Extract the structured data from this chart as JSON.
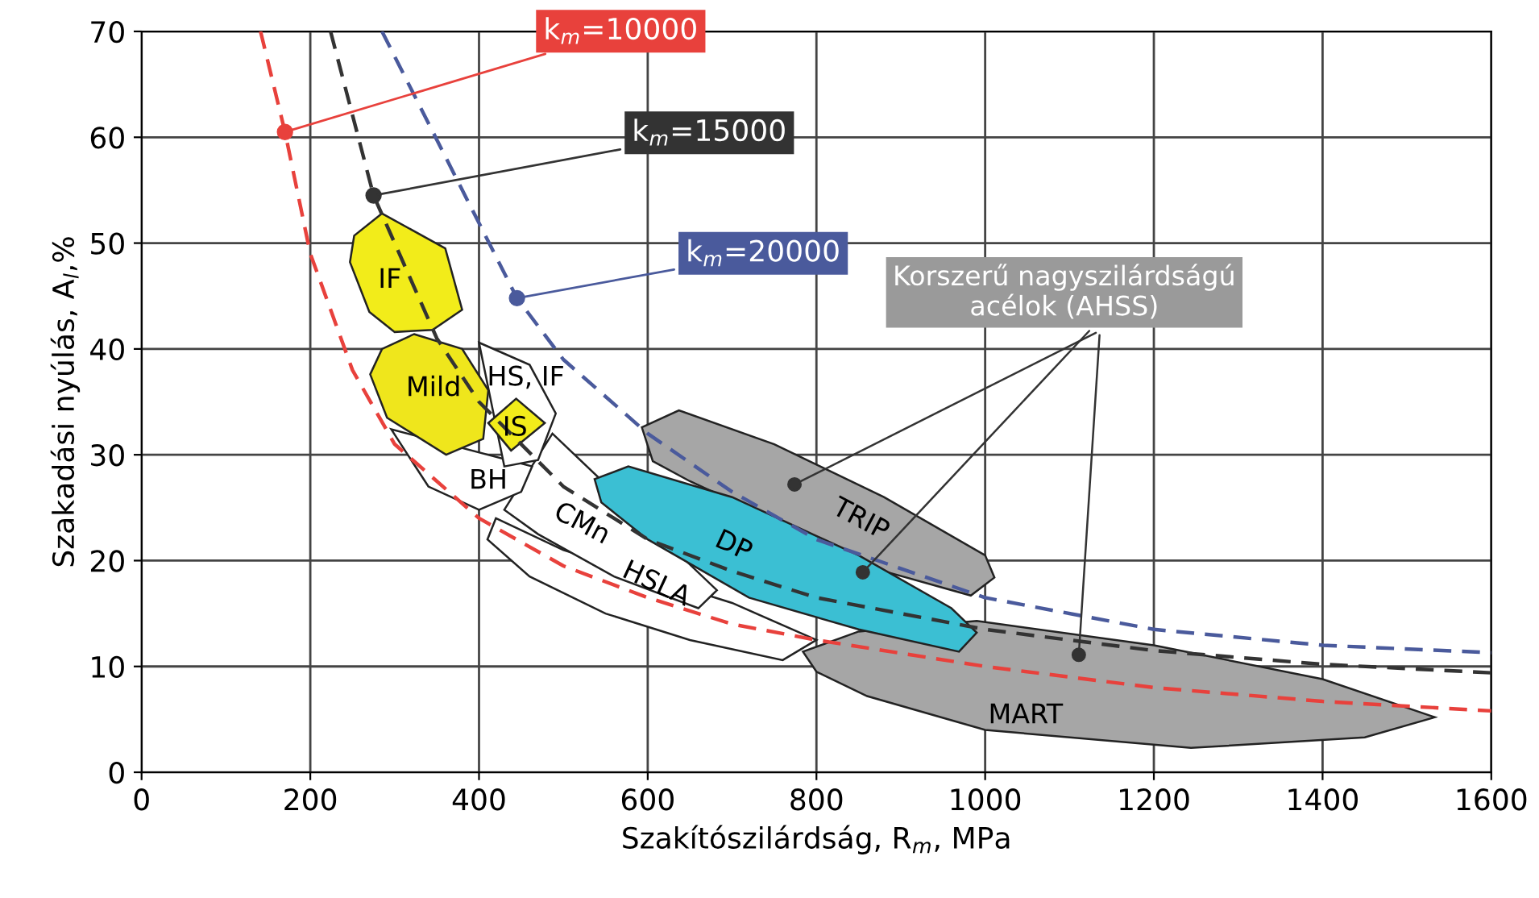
{
  "chart_data": {
    "type": "line",
    "xlabel": "Szakítószilárdság, R$_{m}$, MPa",
    "ylabel": "Szakadási nyúlás, A$_{l}$,%",
    "xlim": [
      0,
      1600
    ],
    "xticks": [
      0,
      200,
      400,
      600,
      800,
      1000,
      1200,
      1400,
      1600
    ],
    "ylim": [
      0,
      70
    ],
    "yticks": [
      0,
      10,
      20,
      30,
      40,
      50,
      60,
      70
    ],
    "grid": true,
    "series": [
      {
        "type": "area",
        "name": "HSLA",
        "color": "#ffffff",
        "x": [
          420,
          500,
          700,
          800,
          760,
          650,
          550,
          460,
          410
        ],
        "values": [
          24,
          21,
          16,
          12.5,
          10.6,
          12.5,
          15,
          18.5,
          22
        ]
      },
      {
        "type": "area",
        "name": "CMn",
        "color": "#ffffff",
        "x": [
          487,
          682,
          660,
          560,
          470,
          430
        ],
        "values": [
          32,
          17.2,
          15.5,
          18.5,
          22.5,
          24.8
        ]
      },
      {
        "type": "area",
        "name": "BH",
        "color": "#ffffff",
        "x": [
          296,
          340,
          400,
          450,
          463
        ],
        "values": [
          32.4,
          27,
          24.8,
          26.5,
          28.9
        ]
      },
      {
        "type": "area",
        "name": "HS, IF",
        "color": "#ffffff",
        "x": [
          400,
          460,
          491,
          470,
          430
        ],
        "values": [
          40.6,
          38.5,
          33.9,
          29.5,
          28.9
        ]
      },
      {
        "type": "area",
        "name": "IS",
        "color": "#f2ec1a",
        "x": [
          411,
          444,
          478,
          438
        ],
        "values": [
          33.0,
          35.3,
          33.0,
          30.4
        ]
      },
      {
        "type": "area",
        "name": "IF",
        "color": "#f2ec1a",
        "x": [
          285,
          360,
          380,
          345,
          300,
          270,
          247,
          252
        ],
        "values": [
          52.8,
          49.5,
          43.7,
          41.8,
          41.6,
          43.5,
          48.2,
          50.7
        ]
      },
      {
        "type": "area",
        "name": "Mild",
        "color": "#efe61c",
        "x": [
          323,
          380,
          411,
          405,
          361,
          291,
          271,
          285
        ],
        "values": [
          41.4,
          40.0,
          36.1,
          31.5,
          30.0,
          33.5,
          37.6,
          40.0
        ]
      },
      {
        "type": "area",
        "name": "TRIP",
        "color": "#a6a6a6",
        "x": [
          593,
          637,
          750,
          880,
          1000,
          1011,
          983,
          880,
          650,
          606
        ],
        "values": [
          32.6,
          34.2,
          31,
          26,
          20.5,
          18.4,
          16.7,
          19,
          27.5,
          29.4
        ]
      },
      {
        "type": "area",
        "name": "MART",
        "color": "#a6a6a6",
        "x": [
          784,
          850,
          990,
          1200,
          1400,
          1533,
          1450,
          1244,
          1000,
          860,
          800
        ],
        "values": [
          11.4,
          13.3,
          14.3,
          12,
          8.8,
          5.2,
          3.3,
          2.3,
          4,
          7.2,
          9.5
        ]
      },
      {
        "type": "area",
        "name": "DP",
        "color": "#3bbfd3",
        "x": [
          537,
          577,
          700,
          850,
          960,
          990,
          969,
          850,
          720,
          600,
          545
        ],
        "values": [
          27.7,
          28.9,
          26,
          20.5,
          15.5,
          13.2,
          11.4,
          13.5,
          16.5,
          22,
          25.5
        ]
      },
      {
        "color": "#e8413c",
        "line_style": "dashed",
        "x": [
          141,
          170,
          200,
          250,
          300,
          400,
          500,
          600,
          700,
          800,
          1000,
          1200,
          1400,
          1600
        ],
        "values": [
          70,
          60.5,
          49,
          38,
          31,
          24,
          19.5,
          16.5,
          14,
          12.5,
          10,
          8,
          6.7,
          5.8
        ]
      },
      {
        "color": "#333333",
        "line_style": "dashed",
        "x": [
          224,
          275,
          350,
          400,
          500,
          600,
          700,
          800,
          1000,
          1200,
          1400,
          1600
        ],
        "values": [
          70,
          54.5,
          41,
          35,
          27,
          22,
          19,
          16.5,
          13.5,
          11.5,
          10.2,
          9.4
        ]
      },
      {
        "color": "#4a5a9c",
        "line_style": "dashed",
        "x": [
          285,
          445,
          500,
          600,
          700,
          800,
          1000,
          1200,
          1400,
          1600
        ],
        "values": [
          70,
          44.8,
          39,
          32,
          26.5,
          22,
          16.5,
          13.5,
          12,
          11.3
        ]
      },
      {
        "type": "scatter",
        "color": "#333333",
        "x": [
          774,
          855,
          1111
        ],
        "values": [
          27.2,
          18.9,
          11.1
        ]
      }
    ],
    "annotations": [
      {
        "text": "k$_{m}$=10000",
        "x": 170,
        "y": 60.5
      },
      {
        "text": "k$_{m}$=15000",
        "x": 275,
        "y": 54.5
      },
      {
        "text": "k$_{m}$=20000",
        "x": 445,
        "y": 44.8
      },
      {
        "text": "Korszerű nagyszilárdságú\nacélok (AHSS)",
        "x": 855,
        "y": 18.9
      }
    ]
  }
}
